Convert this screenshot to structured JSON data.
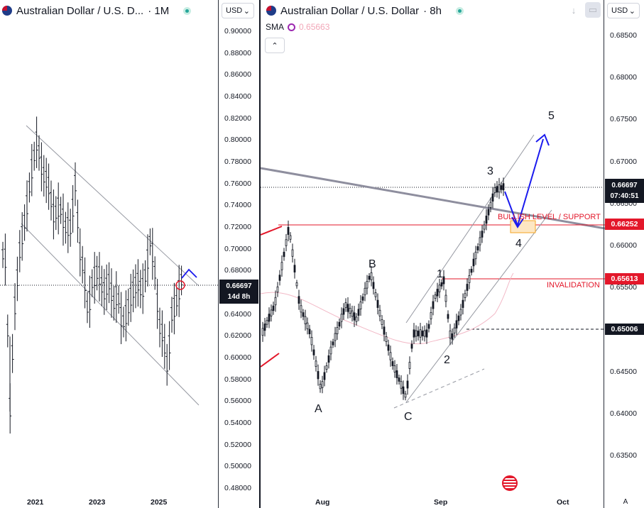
{
  "left_chart": {
    "title": "Australian Dollar / U.S. D...",
    "interval": "· 1M",
    "currency": "USD",
    "price_axis": [
      "0.90000",
      "0.88000",
      "0.86000",
      "0.84000",
      "0.82000",
      "0.80000",
      "0.78000",
      "0.76000",
      "0.74000",
      "0.72000",
      "0.70000",
      "0.68000",
      "0.66000",
      "0.64000",
      "0.62000",
      "0.60000",
      "0.58000",
      "0.56000",
      "0.54000",
      "0.52000",
      "0.50000",
      "0.48000"
    ],
    "time_axis": [
      "2021",
      "2023",
      "2025"
    ],
    "last_price_tag": {
      "price": "0.66697",
      "countdown": "14d 8h"
    }
  },
  "right_chart": {
    "title": "Australian Dollar / U.S. Dollar",
    "interval": "· 8h",
    "currency": "USD",
    "sma_label": "SMA",
    "sma_value": "0.65663",
    "price_axis": [
      "0.68500",
      "0.68000",
      "0.67500",
      "0.67000",
      "0.66500",
      "0.66000",
      "0.65500",
      "0.65000",
      "0.64500",
      "0.64000",
      "0.63500"
    ],
    "time_axis": [
      "Aug",
      "Sep",
      "Oct"
    ],
    "auto_label": "A",
    "last_price_tag": {
      "price": "0.66697",
      "countdown": "07:40:51"
    },
    "price_tags": [
      {
        "price": "0.66252",
        "color": "#e3172a"
      },
      {
        "price": "0.65613",
        "color": "#e3172a"
      },
      {
        "price": "0.65006",
        "color": "#131722"
      }
    ],
    "annotations": {
      "support": "BULLISH LEVEL / SUPPORT",
      "invalidation": "INVALIDATION"
    },
    "wave_labels": [
      "A",
      "B",
      "C",
      "1",
      "2",
      "3",
      "4",
      "5"
    ]
  },
  "colors": {
    "up": "#131722",
    "support": "#e3172a",
    "projection": "#1a1aee",
    "channel": "#9598a1",
    "trendline": "#8e8e9e",
    "sma": "#f2b8c6",
    "zone": "#f5a623"
  },
  "chart_data": [
    {
      "type": "candlestick",
      "title": "Australian Dollar / U.S. Dollar · 1M",
      "ylim": [
        0.48,
        0.9
      ],
      "x_ticks": [
        "2021",
        "2023",
        "2025"
      ],
      "approx_ohlc_path": [
        {
          "period": "2019",
          "close": 0.7
        },
        {
          "period": "2020-03",
          "low": 0.551,
          "close": 0.61
        },
        {
          "period": "2021-02",
          "high": 0.801,
          "close": 0.77
        },
        {
          "period": "2021-12",
          "close": 0.72
        },
        {
          "period": "2022-04",
          "high": 0.76,
          "close": 0.7
        },
        {
          "period": "2022-10",
          "low": 0.617,
          "close": 0.64
        },
        {
          "period": "2023-02",
          "high": 0.714,
          "close": 0.69
        },
        {
          "period": "2023-10",
          "low": 0.627,
          "close": 0.65
        },
        {
          "period": "2024-09",
          "high": 0.694,
          "close": 0.68
        },
        {
          "period": "2025-04",
          "low": 0.591,
          "close": 0.63
        },
        {
          "period": "2025-09",
          "close": 0.66697
        }
      ],
      "last_price": 0.66697
    },
    {
      "type": "candlestick",
      "title": "Australian Dollar / U.S. Dollar · 8h",
      "ylim": [
        0.6335,
        0.688
      ],
      "x_ticks": [
        "Aug",
        "Sep",
        "Oct"
      ],
      "waves": {
        "A": 0.6422,
        "B": 0.6571,
        "C": 0.6415,
        "1": 0.6561,
        "2": 0.6483,
        "3": 0.6671,
        "4": 0.6625,
        "5": 0.6731
      },
      "levels": {
        "support": 0.66252,
        "invalidation": 0.65613,
        "dashed": 0.65006
      },
      "sma": 0.65663,
      "last_price": 0.66697
    }
  ]
}
